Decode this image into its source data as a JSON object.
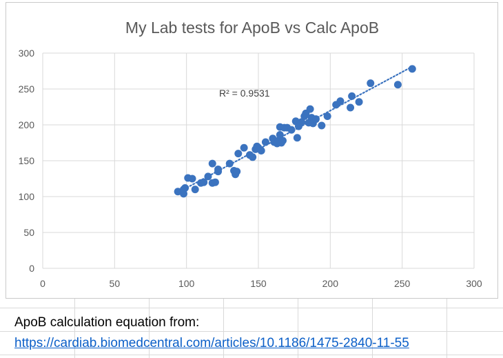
{
  "chart_data": {
    "type": "scatter",
    "title": "My Lab tests for ApoB vs Calc ApoB",
    "xlabel": "",
    "ylabel": "",
    "xlim": [
      0,
      300
    ],
    "ylim": [
      0,
      300
    ],
    "x_ticks": [
      "0",
      "50",
      "100",
      "150",
      "200",
      "250",
      "300"
    ],
    "y_ticks": [
      "0",
      "50",
      "100",
      "150",
      "200",
      "250",
      "300"
    ],
    "grid": true,
    "legend": "none",
    "annotation": "R² = 0.9531",
    "trendline": {
      "style": "dotted",
      "x_range": [
        94,
        257
      ]
    },
    "marker_color": "#3b73bf",
    "series": [
      {
        "x": [
          94,
          98,
          99,
          101,
          104,
          106,
          110,
          118,
          118,
          120,
          122,
          130,
          133,
          134,
          135,
          136,
          140,
          144,
          146,
          148,
          149,
          150,
          152,
          155,
          160,
          161,
          163,
          164,
          165,
          165,
          166,
          167,
          168,
          170,
          173,
          176,
          177,
          178,
          180,
          182,
          183,
          185,
          186,
          187,
          188,
          190,
          194,
          198,
          204,
          207,
          214,
          215,
          220,
          228,
          247,
          257,
          98,
          112,
          115,
          122
        ],
        "y": [
          107,
          104,
          112,
          126,
          125,
          110,
          119,
          146,
          119,
          120,
          135,
          146,
          136,
          131,
          135,
          160,
          168,
          158,
          155,
          166,
          170,
          168,
          164,
          176,
          181,
          176,
          174,
          178,
          186,
          197,
          175,
          178,
          196,
          196,
          193,
          205,
          182,
          198,
          204,
          212,
          216,
          203,
          222,
          210,
          202,
          208,
          199,
          212,
          228,
          233,
          224,
          240,
          232,
          258,
          256,
          278,
          110,
          120,
          128,
          138
        ]
      }
    ]
  },
  "footer": {
    "source_label": "ApoB calculation equation from:",
    "source_link": "https://cardiab.biomedcentral.com/articles/10.1186/1475-2840-11-55"
  }
}
